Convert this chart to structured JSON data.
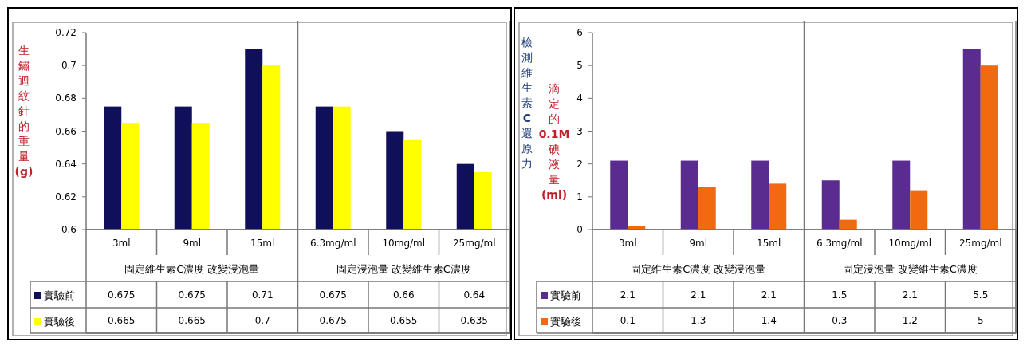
{
  "chart_data": [
    {
      "type": "bar",
      "ylabel": "生鏽迴紋針的重量(g)",
      "categories": [
        "3ml",
        "9ml",
        "15ml",
        "6.3mg/ml",
        "10mg/ml",
        "25mg/ml"
      ],
      "series": [
        {
          "name": "實驗前",
          "color": "#10105a",
          "values": [
            0.675,
            0.675,
            0.71,
            0.675,
            0.66,
            0.64
          ]
        },
        {
          "name": "實驗後",
          "color": "#ffff00",
          "values": [
            0.665,
            0.665,
            0.7,
            0.675,
            0.655,
            0.635
          ]
        }
      ],
      "ylim": [
        0.6,
        0.72
      ],
      "yticks": [
        0.6,
        0.62,
        0.64,
        0.66,
        0.68,
        0.7,
        0.72
      ],
      "grid": false,
      "legend": "bottom left",
      "data_labels": true,
      "annotations": [
        "固定維生素C濃度 改變浸泡量",
        "固定浸泡量 改變維生素C濃度"
      ]
    },
    {
      "type": "bar",
      "ylabel": "滴定的0.1M碘液量(ml)",
      "categories": [
        "3ml",
        "9ml",
        "15ml",
        "6.3mg/ml",
        "10mg/ml",
        "25mg/ml"
      ],
      "series": [
        {
          "name": "實驗前",
          "color": "#5b2c8f",
          "values": [
            2.1,
            2.1,
            2.1,
            1.5,
            2.1,
            5.5
          ]
        },
        {
          "name": "實驗後",
          "color": "#f26a10",
          "values": [
            0.1,
            1.3,
            1.4,
            0.3,
            1.2,
            5
          ]
        }
      ],
      "ylim": [
        0,
        6
      ],
      "yticks": [
        0,
        1,
        2,
        3,
        4,
        5,
        6
      ],
      "grid": false,
      "legend": "bottom left",
      "data_labels": true,
      "annotations": [
        "固定維生素C濃度 改變浸泡量",
        "固定浸泡量 改變維生素C濃度",
        "檢測維生素C還原力"
      ]
    }
  ]
}
